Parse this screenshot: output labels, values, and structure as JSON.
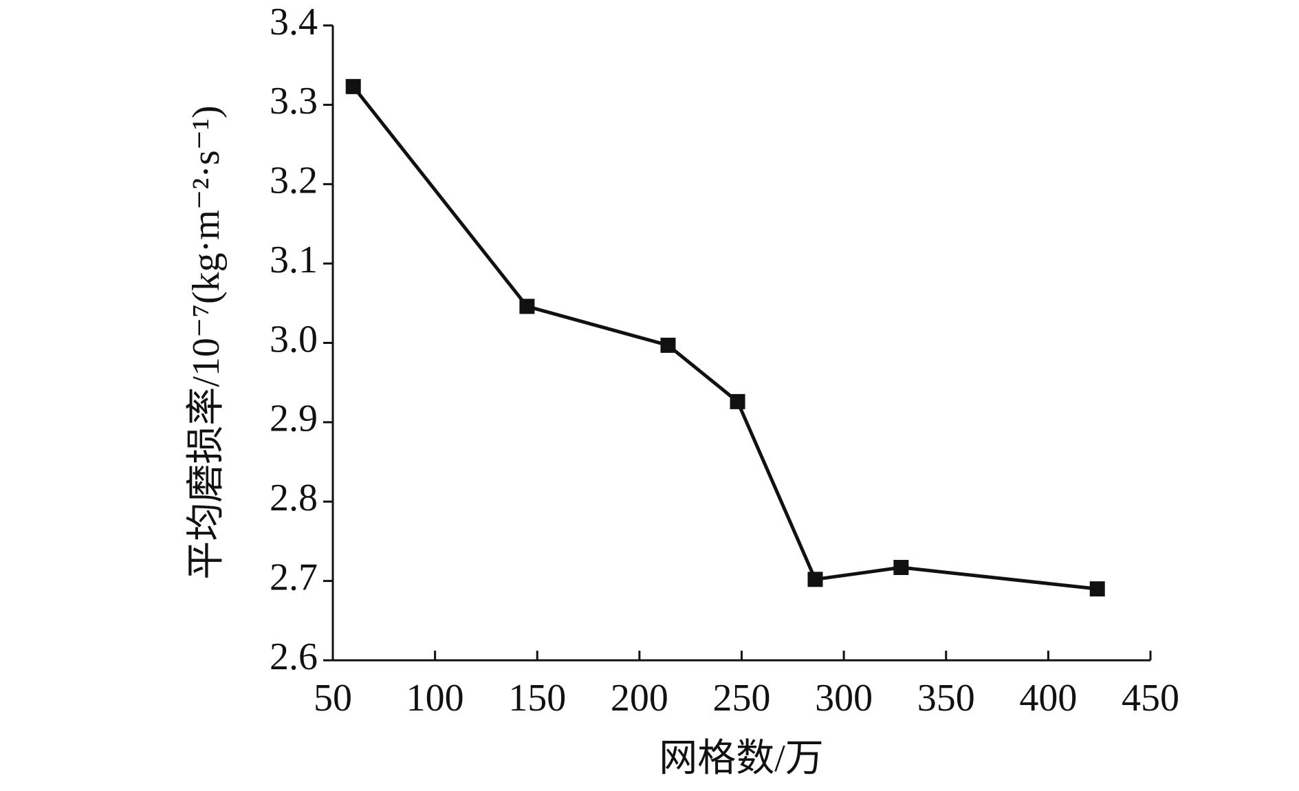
{
  "chart_data": {
    "type": "line",
    "x_label": "网格数/万",
    "y_label": "平均磨损率/10⁻⁷(kg·m⁻²·s⁻¹)",
    "series": [
      {
        "color": "#111111",
        "x": [
          60,
          145,
          214,
          248,
          286,
          328,
          424
        ],
        "values": [
          3.323,
          3.046,
          2.997,
          2.926,
          2.702,
          2.717,
          2.69
        ]
      }
    ],
    "xlim": [
      50,
      450
    ],
    "xticks": [
      50,
      100,
      150,
      200,
      250,
      300,
      350,
      400,
      450
    ],
    "ylim": [
      2.6,
      3.4
    ],
    "yticks": [
      2.6,
      2.7,
      2.8,
      2.9,
      {
        "value": 3,
        "label": "3.0"
      },
      3.1,
      3.2,
      3.3,
      3.4
    ],
    "grid": false
  }
}
